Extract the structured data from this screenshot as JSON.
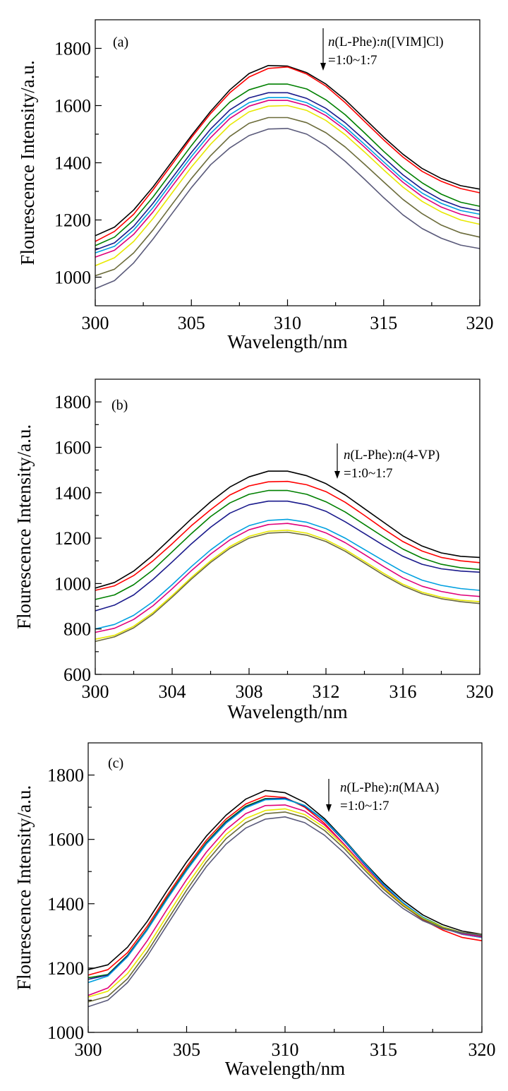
{
  "chart_data": [
    {
      "type": "line",
      "panel_label": "(a)",
      "xlabel": "Wavelength/nm",
      "ylabel": "Flourescence Intensity/a.u.",
      "xlim": [
        300,
        320
      ],
      "ylim": [
        900,
        1900
      ],
      "xticks": [
        300,
        305,
        310,
        315,
        320
      ],
      "yticks": [
        1000,
        1200,
        1400,
        1600,
        1800
      ],
      "grid": false,
      "annotation": {
        "parts": [
          {
            "text": "n",
            "italic": true
          },
          {
            "text": "(L-Phe):",
            "italic": false
          },
          {
            "text": "n",
            "italic": true
          },
          {
            "text": "([VIM]Cl)",
            "italic": false
          }
        ],
        "line2": "=1:0~1:7",
        "arrow": "down"
      },
      "x": [
        300,
        301,
        302,
        303,
        304,
        305,
        306,
        307,
        308,
        309,
        310,
        311,
        312,
        313,
        314,
        315,
        316,
        317,
        318,
        319,
        320
      ],
      "series": [
        {
          "color": "#000000",
          "values": [
            1145,
            1175,
            1235,
            1315,
            1405,
            1495,
            1580,
            1655,
            1712,
            1740,
            1738,
            1715,
            1675,
            1620,
            1555,
            1490,
            1430,
            1380,
            1345,
            1320,
            1308
          ]
        },
        {
          "color": "#ff0000",
          "values": [
            1125,
            1160,
            1220,
            1305,
            1395,
            1488,
            1572,
            1645,
            1700,
            1730,
            1735,
            1710,
            1668,
            1610,
            1545,
            1480,
            1420,
            1370,
            1335,
            1310,
            1295
          ]
        },
        {
          "color": "#008000",
          "values": [
            1110,
            1140,
            1200,
            1280,
            1370,
            1460,
            1545,
            1612,
            1655,
            1675,
            1675,
            1658,
            1620,
            1568,
            1505,
            1440,
            1380,
            1330,
            1290,
            1262,
            1248
          ]
        },
        {
          "color": "#1a1a8c",
          "values": [
            1095,
            1120,
            1178,
            1258,
            1347,
            1436,
            1518,
            1585,
            1627,
            1645,
            1645,
            1625,
            1590,
            1540,
            1480,
            1418,
            1358,
            1308,
            1270,
            1245,
            1232
          ]
        },
        {
          "color": "#00a0e0",
          "values": [
            1085,
            1108,
            1165,
            1243,
            1333,
            1422,
            1503,
            1568,
            1610,
            1628,
            1628,
            1610,
            1575,
            1525,
            1465,
            1403,
            1343,
            1294,
            1258,
            1233,
            1220
          ]
        },
        {
          "color": "#e0007a",
          "values": [
            1070,
            1094,
            1150,
            1228,
            1318,
            1407,
            1488,
            1555,
            1598,
            1618,
            1618,
            1600,
            1565,
            1515,
            1455,
            1392,
            1332,
            1282,
            1245,
            1220,
            1205
          ]
        },
        {
          "color": "#e8e800",
          "values": [
            1040,
            1068,
            1125,
            1205,
            1295,
            1385,
            1465,
            1532,
            1578,
            1598,
            1600,
            1583,
            1548,
            1498,
            1438,
            1375,
            1315,
            1265,
            1228,
            1200,
            1185
          ]
        },
        {
          "color": "#6b6b3a",
          "values": [
            1005,
            1028,
            1085,
            1165,
            1255,
            1345,
            1425,
            1492,
            1538,
            1558,
            1558,
            1540,
            1505,
            1455,
            1395,
            1333,
            1272,
            1222,
            1182,
            1155,
            1140
          ]
        },
        {
          "color": "#5a5a7a",
          "values": [
            960,
            988,
            1050,
            1133,
            1223,
            1313,
            1393,
            1452,
            1495,
            1518,
            1520,
            1500,
            1460,
            1405,
            1343,
            1278,
            1218,
            1170,
            1136,
            1112,
            1100
          ]
        }
      ]
    },
    {
      "type": "line",
      "panel_label": "(b)",
      "xlabel": "Wavelength/nm",
      "ylabel": "Flourescence Intensity/a.u.",
      "xlim": [
        300,
        320
      ],
      "ylim": [
        600,
        1900
      ],
      "xticks": [
        300,
        304,
        308,
        312,
        316,
        320
      ],
      "yticks": [
        600,
        800,
        1000,
        1200,
        1400,
        1600,
        1800
      ],
      "grid": false,
      "annotation": {
        "parts": [
          {
            "text": "n",
            "italic": true
          },
          {
            "text": "(L-Phe):",
            "italic": false
          },
          {
            "text": "n",
            "italic": true
          },
          {
            "text": "(4-VP)",
            "italic": false
          }
        ],
        "line2": "=1:0~1:7",
        "arrow": "down"
      },
      "x": [
        300,
        301,
        302,
        303,
        304,
        305,
        306,
        307,
        308,
        309,
        310,
        311,
        312,
        313,
        314,
        315,
        316,
        317,
        318,
        319,
        320
      ],
      "series": [
        {
          "color": "#000000",
          "values": [
            980,
            1005,
            1055,
            1125,
            1205,
            1285,
            1360,
            1425,
            1470,
            1495,
            1495,
            1475,
            1440,
            1390,
            1330,
            1270,
            1210,
            1165,
            1135,
            1120,
            1115
          ]
        },
        {
          "color": "#ff0000",
          "values": [
            970,
            990,
            1035,
            1100,
            1175,
            1255,
            1325,
            1390,
            1430,
            1448,
            1450,
            1435,
            1405,
            1358,
            1300,
            1240,
            1185,
            1143,
            1115,
            1100,
            1092
          ]
        },
        {
          "color": "#008000",
          "values": [
            930,
            950,
            995,
            1060,
            1140,
            1220,
            1295,
            1355,
            1393,
            1410,
            1410,
            1393,
            1360,
            1315,
            1260,
            1205,
            1152,
            1112,
            1085,
            1070,
            1062
          ]
        },
        {
          "color": "#1a1a8c",
          "values": [
            880,
            905,
            950,
            1018,
            1095,
            1175,
            1248,
            1310,
            1347,
            1363,
            1363,
            1347,
            1318,
            1272,
            1220,
            1168,
            1120,
            1085,
            1065,
            1055,
            1050
          ]
        },
        {
          "color": "#00a0e0",
          "values": [
            800,
            820,
            860,
            920,
            995,
            1075,
            1148,
            1210,
            1255,
            1278,
            1283,
            1270,
            1242,
            1200,
            1150,
            1100,
            1052,
            1015,
            992,
            978,
            970
          ]
        },
        {
          "color": "#e0007a",
          "values": [
            785,
            803,
            842,
            902,
            977,
            1057,
            1130,
            1192,
            1237,
            1260,
            1265,
            1252,
            1223,
            1180,
            1128,
            1075,
            1025,
            988,
            965,
            950,
            943
          ]
        },
        {
          "color": "#e8e800",
          "values": [
            755,
            772,
            812,
            872,
            947,
            1027,
            1100,
            1163,
            1208,
            1230,
            1235,
            1222,
            1193,
            1150,
            1098,
            1045,
            997,
            962,
            940,
            927,
            920
          ]
        },
        {
          "color": "#6b6b3a",
          "values": [
            745,
            765,
            805,
            865,
            940,
            1020,
            1093,
            1155,
            1200,
            1222,
            1226,
            1213,
            1185,
            1142,
            1090,
            1037,
            990,
            955,
            933,
            920,
            912
          ]
        }
      ]
    },
    {
      "type": "line",
      "panel_label": "(c)",
      "xlabel": "Wavelength/nm",
      "ylabel": "Flourescence Intensity/a.u.",
      "xlim": [
        300,
        320
      ],
      "ylim": [
        1000,
        1900
      ],
      "xticks": [
        300,
        305,
        310,
        315,
        320
      ],
      "yticks": [
        1000,
        1200,
        1400,
        1600,
        1800
      ],
      "grid": false,
      "annotation": {
        "parts": [
          {
            "text": "n",
            "italic": true
          },
          {
            "text": "(L-Phe):",
            "italic": false
          },
          {
            "text": "n",
            "italic": true
          },
          {
            "text": "(MAA)",
            "italic": false
          }
        ],
        "line2": "=1:0~1:7",
        "arrow": "down"
      },
      "x": [
        300,
        301,
        302,
        303,
        304,
        305,
        306,
        307,
        308,
        309,
        310,
        311,
        312,
        313,
        314,
        315,
        316,
        317,
        318,
        319,
        320
      ],
      "series": [
        {
          "color": "#000000",
          "values": [
            1195,
            1210,
            1265,
            1345,
            1440,
            1530,
            1610,
            1675,
            1725,
            1752,
            1745,
            1715,
            1665,
            1600,
            1530,
            1465,
            1410,
            1365,
            1335,
            1315,
            1305
          ]
        },
        {
          "color": "#ff0000",
          "values": [
            1178,
            1195,
            1248,
            1330,
            1425,
            1515,
            1597,
            1663,
            1710,
            1735,
            1730,
            1700,
            1650,
            1585,
            1515,
            1450,
            1395,
            1350,
            1318,
            1295,
            1285
          ]
        },
        {
          "color": "#008000",
          "values": [
            1170,
            1180,
            1240,
            1322,
            1418,
            1508,
            1590,
            1656,
            1703,
            1727,
            1727,
            1705,
            1660,
            1598,
            1528,
            1460,
            1402,
            1358,
            1328,
            1310,
            1300
          ]
        },
        {
          "color": "#1a1a8c",
          "values": [
            1165,
            1178,
            1238,
            1320,
            1415,
            1505,
            1587,
            1653,
            1700,
            1725,
            1728,
            1703,
            1658,
            1595,
            1525,
            1458,
            1400,
            1355,
            1325,
            1305,
            1295
          ]
        },
        {
          "color": "#00a0e0",
          "values": [
            1155,
            1175,
            1235,
            1318,
            1413,
            1503,
            1585,
            1650,
            1698,
            1723,
            1725,
            1705,
            1660,
            1598,
            1528,
            1460,
            1403,
            1358,
            1325,
            1305,
            1295
          ]
        },
        {
          "color": "#e0007a",
          "values": [
            1115,
            1138,
            1200,
            1285,
            1382,
            1475,
            1560,
            1630,
            1680,
            1705,
            1707,
            1688,
            1645,
            1585,
            1518,
            1452,
            1398,
            1355,
            1325,
            1306,
            1297
          ]
        },
        {
          "color": "#e8e800",
          "values": [
            1110,
            1128,
            1183,
            1265,
            1362,
            1457,
            1543,
            1615,
            1665,
            1690,
            1695,
            1677,
            1637,
            1580,
            1513,
            1450,
            1397,
            1355,
            1327,
            1310,
            1302
          ]
        },
        {
          "color": "#6b6b3a",
          "values": [
            1095,
            1112,
            1167,
            1250,
            1347,
            1442,
            1530,
            1602,
            1652,
            1680,
            1685,
            1668,
            1628,
            1572,
            1507,
            1445,
            1393,
            1352,
            1325,
            1310,
            1305
          ]
        },
        {
          "color": "#5a5a7a",
          "values": [
            1080,
            1100,
            1155,
            1237,
            1333,
            1428,
            1515,
            1585,
            1635,
            1663,
            1670,
            1652,
            1613,
            1558,
            1495,
            1435,
            1385,
            1347,
            1322,
            1308,
            1302
          ]
        }
      ]
    }
  ]
}
